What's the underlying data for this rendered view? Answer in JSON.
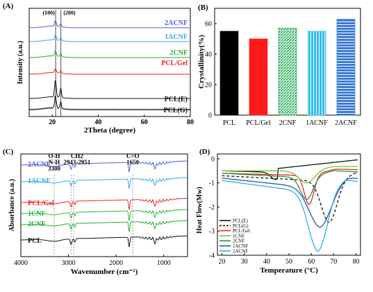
{
  "chart_data": [
    {
      "panel": "(A)",
      "type": "line",
      "xlabel": "2Theta (degree)",
      "ylabel": "Intensity (a.u.)",
      "xlim": [
        10,
        80
      ],
      "xticks": [
        "20",
        "40",
        "60",
        "80"
      ],
      "peak_labels": [
        "(100)",
        "(200)"
      ],
      "series": [
        {
          "name": "2ACNF",
          "color": "#4a5de0"
        },
        {
          "name": "1ACNF",
          "color": "#33aaee"
        },
        {
          "name": "2CNF",
          "color": "#22aa33"
        },
        {
          "name": "PCL/Gel",
          "color": "#ee2222"
        },
        {
          "name": "PCL(E)",
          "color": "#111111"
        },
        {
          "name": "PCL(G)",
          "color": "#111111"
        }
      ]
    },
    {
      "panel": "(B)",
      "type": "bar",
      "ylabel": "Crystallinity(%)",
      "ylim": [
        0,
        70
      ],
      "yticks": [
        "0",
        "20",
        "40",
        "60"
      ],
      "categories": [
        "PCL",
        "PCL/Gel",
        "2CNF",
        "1ACNF",
        "2ACNF"
      ],
      "values": [
        55,
        50,
        57,
        55,
        63
      ],
      "colors": [
        "#000000",
        "#ff1a1a",
        "#22aa55",
        "#33bbee",
        "#3a7bd5"
      ]
    },
    {
      "panel": "(C)",
      "type": "line",
      "xlabel": "Wavenumber (cm⁻¹)",
      "ylabel": "Absorbance (a.u.)",
      "xlim": [
        4000,
        500
      ],
      "xticks": [
        "4000",
        "3000",
        "2000",
        "1000"
      ],
      "annotations": [
        "O-H",
        "N-H",
        "3300",
        "CH2",
        "2943-2951",
        "C=O",
        "1650"
      ],
      "series": [
        {
          "name": "2ACNF",
          "color": "#4a5de0"
        },
        {
          "name": "1ACNF",
          "color": "#33aaee"
        },
        {
          "name": "PCL/Gel",
          "color": "#ee2222"
        },
        {
          "name": "1CNF",
          "color": "#22bb33"
        },
        {
          "name": "2CNF",
          "color": "#22aa33"
        },
        {
          "name": "PCL",
          "color": "#111111"
        }
      ]
    },
    {
      "panel": "(D)",
      "type": "line",
      "xlabel": "Temperature (°C)",
      "ylabel": "Heat Flow(Mw)",
      "xlim": [
        18,
        82
      ],
      "ylim": [
        -4,
        0.2
      ],
      "xticks": [
        "20",
        "30",
        "40",
        "50",
        "60",
        "70",
        "80"
      ],
      "yticks": [
        "0",
        "-1",
        "-2",
        "-3",
        "-4"
      ],
      "series": [
        {
          "name": "PCL(E)",
          "color": "#111111",
          "dash": false
        },
        {
          "name": "PCL(G)",
          "color": "#111111",
          "dash": true
        },
        {
          "name": "PCL/Gel",
          "color": "#ee2222",
          "dash": false
        },
        {
          "name": "1CNF",
          "color": "#66cc33",
          "dash": false
        },
        {
          "name": "2CNF",
          "color": "#229944",
          "dash": false
        },
        {
          "name": "1ACNF",
          "color": "#2255aa",
          "dash": false
        },
        {
          "name": "2ACNF",
          "color": "#33aaee",
          "dash": false
        }
      ]
    }
  ]
}
